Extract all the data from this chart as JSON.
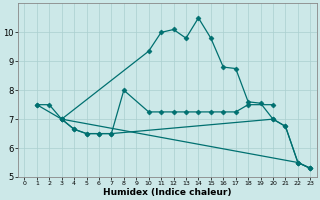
{
  "xlabel": "Humidex (Indice chaleur)",
  "background_color": "#cce8e8",
  "grid_color": "#aacfcf",
  "line_color": "#007070",
  "xlim": [
    -0.5,
    23.5
  ],
  "ylim": [
    5,
    11
  ],
  "yticks": [
    5,
    6,
    7,
    8,
    9,
    10
  ],
  "xticks": [
    0,
    1,
    2,
    3,
    4,
    5,
    6,
    7,
    8,
    9,
    10,
    11,
    12,
    13,
    14,
    15,
    16,
    17,
    18,
    19,
    20,
    21,
    22,
    23
  ],
  "lines": [
    {
      "x": [
        1,
        2,
        3,
        10,
        11,
        12,
        13,
        14,
        15,
        16,
        17,
        18,
        19,
        20,
        21,
        22,
        23
      ],
      "y": [
        7.5,
        7.5,
        7.0,
        9.35,
        10.0,
        10.1,
        9.8,
        10.5,
        9.8,
        8.8,
        8.75,
        7.6,
        7.55,
        7.0,
        6.75,
        5.5,
        5.3
      ]
    },
    {
      "x": [
        3,
        4,
        5,
        6,
        7,
        8,
        10,
        11,
        12,
        13,
        14,
        15,
        16,
        17,
        18,
        20
      ],
      "y": [
        7.0,
        6.65,
        6.5,
        6.5,
        6.5,
        8.0,
        7.25,
        7.25,
        7.25,
        7.25,
        7.25,
        7.25,
        7.25,
        7.25,
        7.5,
        7.5
      ]
    },
    {
      "x": [
        3,
        4,
        5,
        6,
        7,
        20,
        21,
        22,
        23
      ],
      "y": [
        7.0,
        6.65,
        6.5,
        6.5,
        6.5,
        7.0,
        6.75,
        5.5,
        5.3
      ]
    },
    {
      "x": [
        1,
        3,
        22,
        23
      ],
      "y": [
        7.5,
        7.0,
        5.5,
        5.3
      ]
    }
  ]
}
